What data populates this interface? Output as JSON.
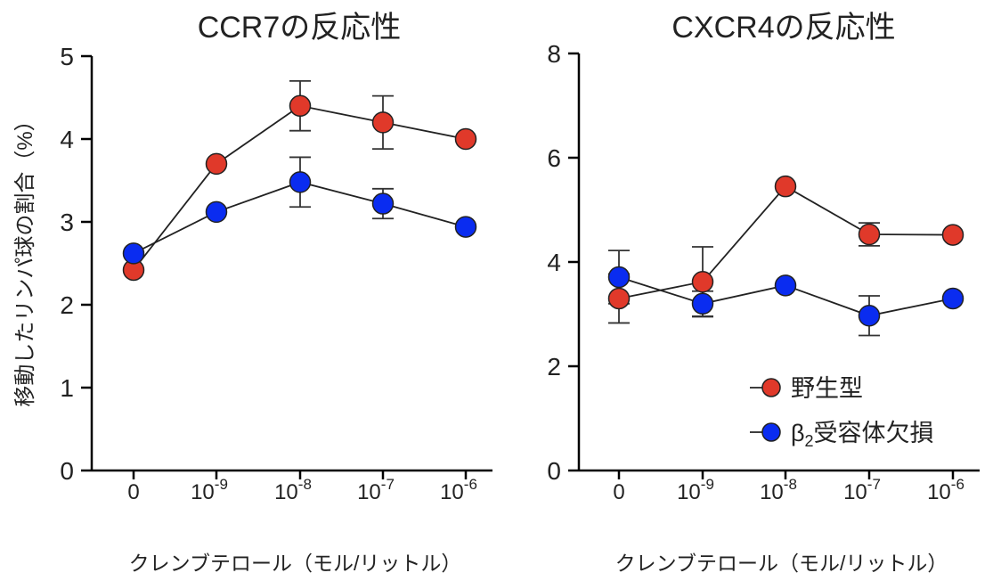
{
  "chart_data": [
    {
      "type": "line",
      "title": "CCR7の反応性",
      "xlabel": "クレンブテロール（モル/リットル）",
      "ylabel": "移動したリンパ球の割合（%）",
      "categories": [
        {
          "base": "0",
          "exp": ""
        },
        {
          "base": "10",
          "exp": "-9"
        },
        {
          "base": "10",
          "exp": "-8"
        },
        {
          "base": "10",
          "exp": "-7"
        },
        {
          "base": "10",
          "exp": "-6"
        }
      ],
      "ylim": [
        0,
        5
      ],
      "yticks": [
        "0",
        "1",
        "2",
        "3",
        "4",
        "5"
      ],
      "grid": false,
      "series": [
        {
          "name": "野生型",
          "color": "#e0392a",
          "values": [
            2.42,
            3.7,
            4.4,
            4.2,
            4.0
          ],
          "errors": [
            null,
            null,
            0.3,
            0.32,
            null
          ]
        },
        {
          "name": "β2受容体欠損",
          "color": "#0a2cf0",
          "values": [
            2.62,
            3.12,
            3.48,
            3.22,
            2.94
          ],
          "errors": [
            null,
            null,
            0.3,
            0.18,
            null
          ]
        }
      ]
    },
    {
      "type": "line",
      "title": "CXCR4の反応性",
      "xlabel": "クレンブテロール（モル/リットル）",
      "categories": [
        {
          "base": "0",
          "exp": ""
        },
        {
          "base": "10",
          "exp": "-9"
        },
        {
          "base": "10",
          "exp": "-8"
        },
        {
          "base": "10",
          "exp": "-7"
        },
        {
          "base": "10",
          "exp": "-6"
        }
      ],
      "ylim": [
        0,
        8
      ],
      "yticks": [
        "0",
        "2",
        "4",
        "6",
        "8"
      ],
      "grid": false,
      "legend_position": "bottom-right",
      "legend": [
        {
          "label": "野生型",
          "color": "#e0392a"
        },
        {
          "label_main": "β",
          "label_sub": "2",
          "label_rest": "受容体欠損",
          "color": "#0a2cf0"
        }
      ],
      "series": [
        {
          "name": "野生型",
          "color": "#e0392a",
          "values": [
            3.3,
            3.62,
            5.45,
            4.53,
            4.52
          ],
          "errors": [
            0.47,
            0.67,
            null,
            0.22,
            null
          ]
        },
        {
          "name": "β2受容体欠損",
          "color": "#0a2cf0",
          "values": [
            3.71,
            3.2,
            3.55,
            2.97,
            3.3
          ],
          "errors": [
            0.51,
            0.24,
            null,
            0.38,
            null
          ]
        }
      ]
    }
  ]
}
